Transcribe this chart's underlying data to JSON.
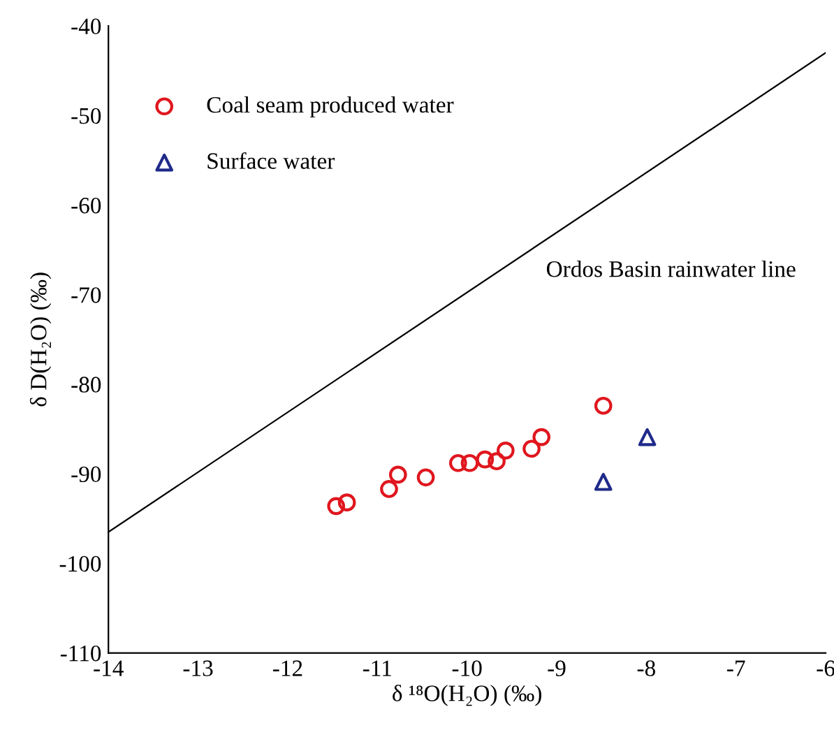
{
  "chart_data": {
    "type": "scatter",
    "xlabel": "δ ¹⁸O(H₂O) (‰)",
    "ylabel": "δ D(H₂O) (‰)",
    "xlim": [
      -14,
      -6
    ],
    "xticks": [
      -14,
      -13,
      -12,
      -11,
      -10,
      -9,
      -8,
      -7,
      -6
    ],
    "ylim": [
      -110,
      -40
    ],
    "yticks": [
      -110,
      -100,
      -90,
      -80,
      -70,
      -60,
      -50,
      -40
    ],
    "grid": false,
    "legend": "top left",
    "annotations": [
      "Ordos Basin rainwater line"
    ],
    "series": [
      {
        "name": "Coal seam produced water",
        "color": "#e0161e",
        "marker": "circle",
        "x": [
          -11.46,
          -11.34,
          -10.87,
          -10.77,
          -10.46,
          -10.1,
          -9.97,
          -9.8,
          -9.67,
          -9.57,
          -9.28,
          -9.17,
          -8.48
        ],
        "values": [
          -93.6,
          -93.2,
          -91.7,
          -90.1,
          -90.4,
          -88.8,
          -88.8,
          -88.4,
          -88.6,
          -87.4,
          -87.2,
          -85.9,
          -82.4
        ]
      },
      {
        "name": "Surface water",
        "color": "#1f2a8a",
        "marker": "triangle",
        "x": [
          -8.48,
          -7.99
        ],
        "values": [
          -90.9,
          -85.9
        ]
      },
      {
        "type": "line",
        "color": "#000000",
        "marker": "none",
        "line_style": "solid",
        "x": [
          -14,
          -6
        ],
        "values": [
          -96.5,
          -43
        ]
      }
    ]
  }
}
